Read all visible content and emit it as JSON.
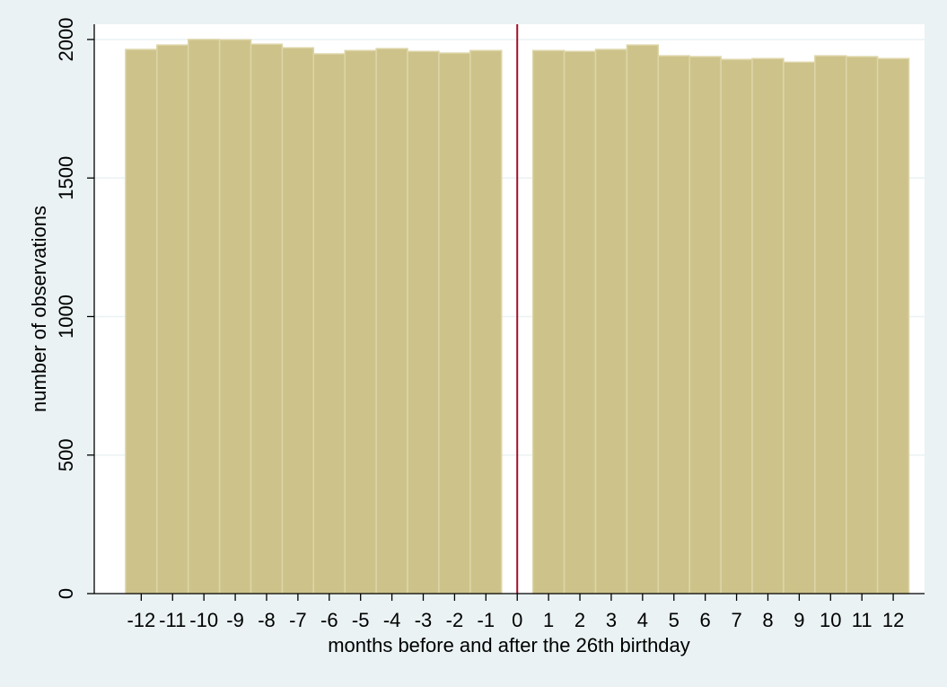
{
  "chart_data": {
    "type": "bar",
    "x_label": "months before and after the 26th birthday",
    "y_label": "number of observations",
    "x": [
      -12,
      -11,
      -10,
      -9,
      -8,
      -7,
      -6,
      -5,
      -4,
      -3,
      -2,
      -1,
      1,
      2,
      3,
      4,
      5,
      6,
      7,
      8,
      9,
      10,
      11,
      12
    ],
    "values": [
      1964,
      1980,
      2000,
      1999,
      1983,
      1970,
      1948,
      1960,
      1967,
      1957,
      1951,
      1960,
      1960,
      1957,
      1964,
      1980,
      1941,
      1938,
      1928,
      1931,
      1918,
      1941,
      1938,
      1931
    ],
    "color": "#cdc38a",
    "xlim": [
      -13.5,
      13
    ],
    "xticks": [
      -12,
      -11,
      -10,
      -9,
      -8,
      -7,
      -6,
      -5,
      -4,
      -3,
      -2,
      -1,
      0,
      1,
      2,
      3,
      4,
      5,
      6,
      7,
      8,
      9,
      10,
      11,
      12
    ],
    "ylim": [
      0,
      2055
    ],
    "yticks": [
      0,
      500,
      1000,
      1500,
      2000
    ],
    "grid": true,
    "reference_line": {
      "x": 0,
      "color": "#a0102a"
    }
  }
}
